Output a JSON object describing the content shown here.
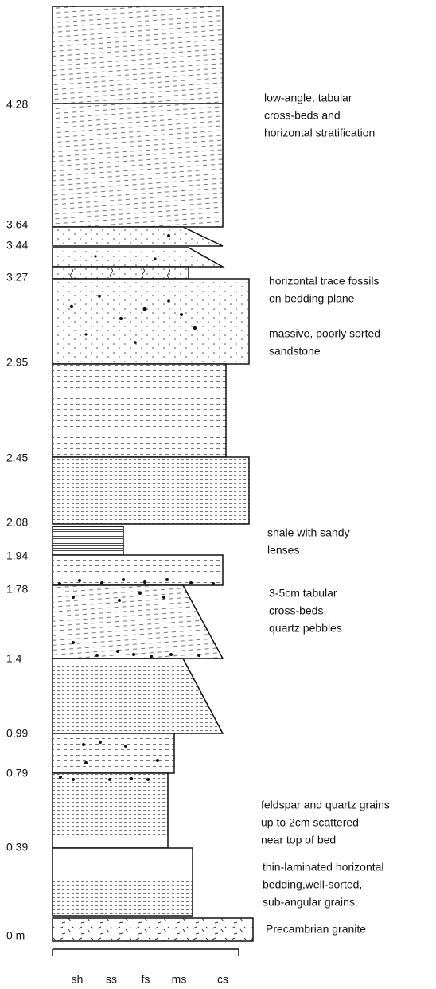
{
  "depths": [
    "4.28",
    "3.64",
    "3.44",
    "3.27",
    "2.95",
    "2.45",
    "2.08",
    "1.94",
    "1.78",
    "1.4",
    "0.99",
    "0.79",
    "0.39",
    "0 m"
  ],
  "descriptions": [
    [
      "low-angle, tabular",
      "cross-beds and",
      "horizontal stratification"
    ],
    [
      "horizontal trace fossils",
      "on bedding plane"
    ],
    [
      "massive, poorly sorted",
      "sandstone"
    ],
    [
      "shale with sandy",
      "lenses"
    ],
    [
      "3-5cm tabular",
      "cross-beds,",
      "quartz pebbles"
    ],
    [
      "feldspar and quartz grains",
      "up to 2cm scattered",
      "near top of bed"
    ],
    [
      "thin-laminated horizontal",
      "bedding,well-sorted,",
      "sub-angular grains."
    ],
    [
      "Precambrian granite"
    ]
  ],
  "grain_sizes": [
    "sh",
    "ss",
    "fs",
    "ms",
    "cs"
  ]
}
